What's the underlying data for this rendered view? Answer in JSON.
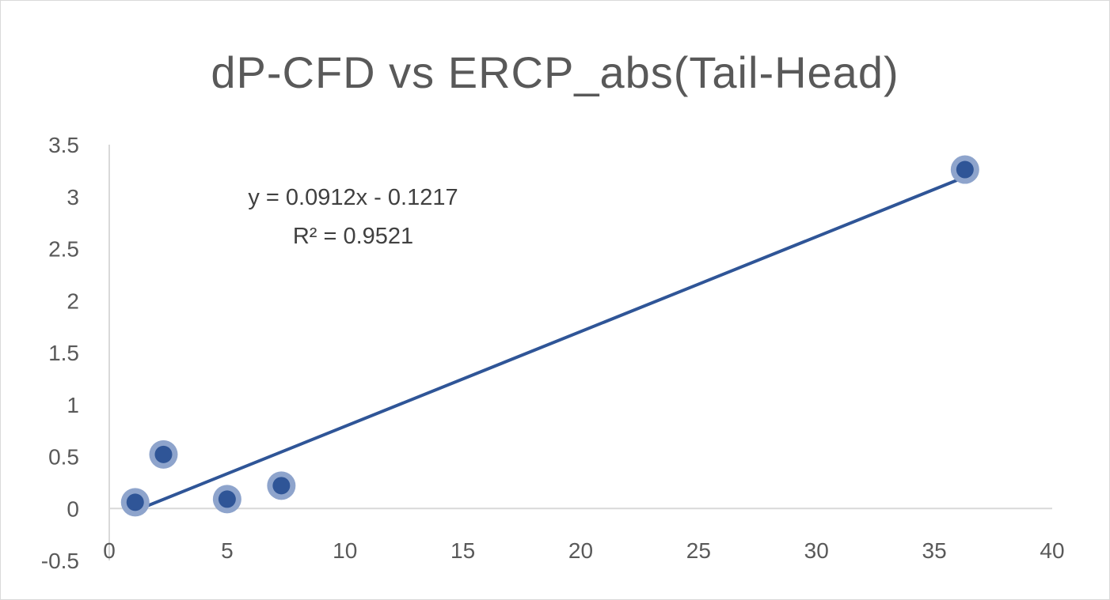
{
  "chart_data": {
    "type": "scatter",
    "title": "dP-CFD vs ERCP_abs(Tail-Head)",
    "xlabel": "",
    "ylabel": "",
    "xlim": [
      0,
      40
    ],
    "ylim": [
      -0.5,
      3.5
    ],
    "x_ticks": [
      0,
      5,
      10,
      15,
      20,
      25,
      30,
      35,
      40
    ],
    "y_ticks": [
      -0.5,
      0,
      0.5,
      1,
      1.5,
      2,
      2.5,
      3,
      3.5
    ],
    "x_tick_labels": [
      "0",
      "5",
      "10",
      "15",
      "20",
      "25",
      "30",
      "35",
      "40"
    ],
    "y_tick_labels": [
      "-0.5",
      "0",
      "0.5",
      "1",
      "1.5",
      "2",
      "2.5",
      "3",
      "3.5"
    ],
    "grid": false,
    "series": [
      {
        "x": [
          1.1,
          2.3,
          5.0,
          7.3,
          36.3
        ],
        "y": [
          0.06,
          0.52,
          0.09,
          0.22,
          3.26
        ],
        "color": "#2f5597"
      }
    ],
    "trendline": {
      "slope": 0.0912,
      "intercept": -0.1217,
      "x_range": [
        1.1,
        36.3
      ],
      "equation_label": "y = 0.0912x - 0.1217",
      "r2_label": "R² = 0.9521",
      "color": "#2f5597"
    }
  }
}
